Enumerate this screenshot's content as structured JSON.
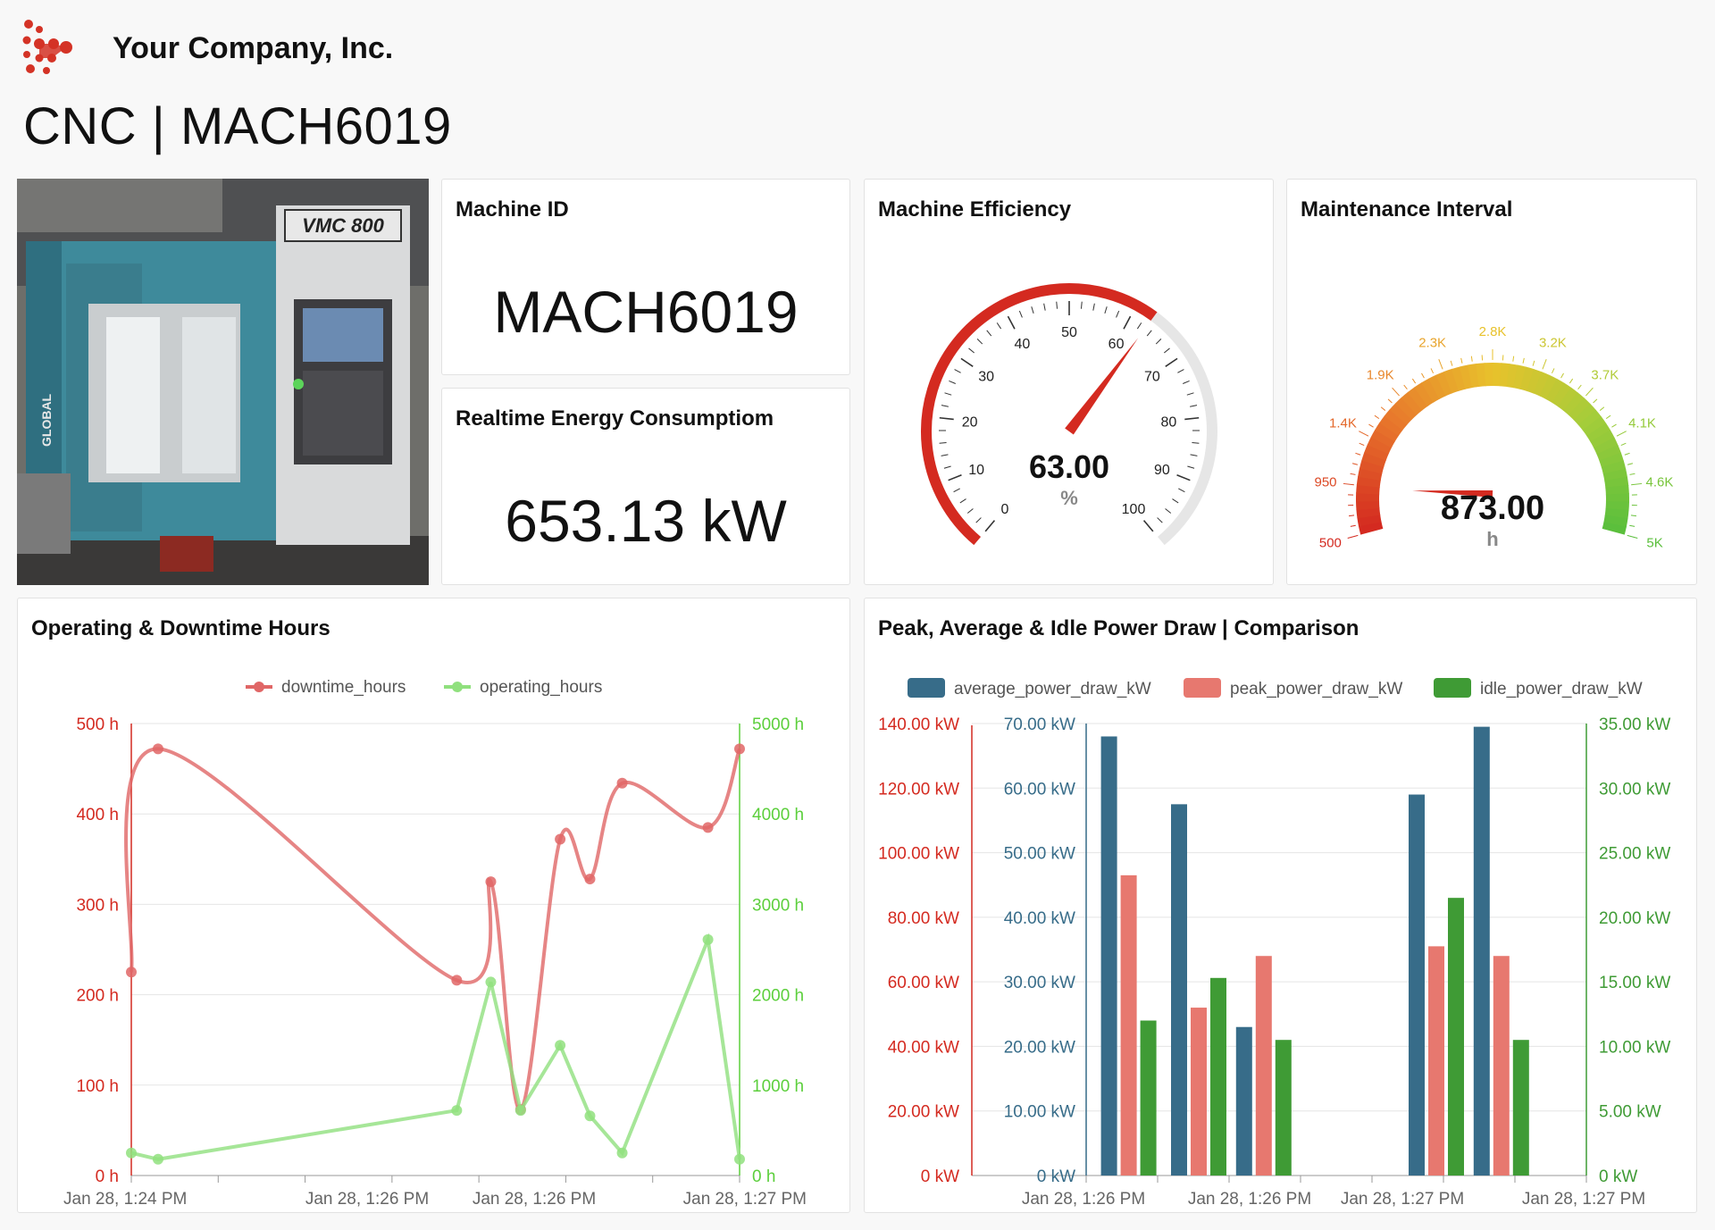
{
  "header": {
    "company": "Your Company, Inc.",
    "title": "CNC | MACH6019"
  },
  "machine_id": {
    "title": "Machine ID",
    "value": "MACH6019"
  },
  "energy": {
    "title": "Realtime Energy Consumptiom",
    "value": "653.13 kW"
  },
  "efficiency": {
    "title": "Machine Efficiency",
    "value": 63.0,
    "display": "63.00",
    "unit": "%",
    "min": 0,
    "max": 100,
    "ticks": [
      "0",
      "10",
      "20",
      "30",
      "40",
      "50",
      "60",
      "70",
      "80",
      "90",
      "100"
    ],
    "color": "#d42a20"
  },
  "maintenance": {
    "title": "Maintenance Interval",
    "value": 873,
    "display": "873.00",
    "unit": "h",
    "min": 500,
    "max": 5000,
    "ticks": [
      "500",
      "950",
      "1.4K",
      "1.9K",
      "2.3K",
      "2.8K",
      "3.2K",
      "3.7K",
      "4.1K",
      "4.6K",
      "5K"
    ]
  },
  "machine_photo": {
    "label": "VMC 800",
    "brand": "GLOBAL"
  },
  "charts": {
    "hours": {
      "title": "Operating & Downtime Hours",
      "legend": [
        "downtime_hours",
        "operating_hours"
      ],
      "left_ticks": [
        "0 h",
        "100 h",
        "200 h",
        "300 h",
        "400 h",
        "500 h"
      ],
      "right_ticks": [
        "0 h",
        "1000 h",
        "2000 h",
        "3000 h",
        "4000 h",
        "5000 h"
      ],
      "x_labels": [
        "Jan 28, 1:24 PM",
        "Jan 28, 1:26 PM",
        "Jan 28, 1:26 PM",
        "Jan 28, 1:27 PM"
      ]
    },
    "power": {
      "title": "Peak, Average & Idle Power Draw | Comparison",
      "legend": [
        "average_power_draw_kW",
        "peak_power_draw_kW",
        "idle_power_draw_kW"
      ],
      "left_ticks": [
        "0 kW",
        "20.00 kW",
        "40.00 kW",
        "60.00 kW",
        "80.00 kW",
        "100.00 kW",
        "120.00 kW",
        "140.00 kW"
      ],
      "mid_ticks": [
        "0 kW",
        "10.00 kW",
        "20.00 kW",
        "30.00 kW",
        "40.00 kW",
        "50.00 kW",
        "60.00 kW",
        "70.00 kW"
      ],
      "right_ticks": [
        "0 kW",
        "5.00 kW",
        "10.00 kW",
        "15.00 kW",
        "20.00 kW",
        "25.00 kW",
        "30.00 kW",
        "35.00 kW"
      ],
      "x_labels": [
        "Jan 28, 1:26 PM",
        "Jan 28, 1:26 PM",
        "Jan 28, 1:27 PM",
        "Jan 28, 1:27 PM"
      ]
    }
  },
  "chart_data": [
    {
      "type": "line",
      "title": "Operating & Downtime Hours",
      "x_ticks": [
        "Jan 28, 1:24 PM",
        "Jan 28, 1:26 PM",
        "Jan 28, 1:26 PM",
        "Jan 28, 1:27 PM"
      ],
      "series": [
        {
          "name": "downtime_hours",
          "axis": "left",
          "color": "#e06666",
          "x": [
            0,
            0.044,
            0.535,
            0.591,
            0.64,
            0.705,
            0.754,
            0.807,
            0.948,
            1.0
          ],
          "values": [
            225,
            472,
            216,
            325,
            73,
            372,
            328,
            434,
            385,
            472
          ]
        },
        {
          "name": "operating_hours",
          "axis": "right",
          "color": "#90e07e",
          "x": [
            0,
            0.044,
            0.535,
            0.591,
            0.64,
            0.705,
            0.754,
            0.807,
            0.948,
            1.0
          ],
          "values": [
            250,
            180,
            720,
            2140,
            720,
            1440,
            660,
            250,
            2610,
            180
          ]
        }
      ],
      "ylim_left": [
        0,
        500
      ],
      "ylim_right": [
        0,
        5000
      ]
    },
    {
      "type": "bar",
      "title": "Peak, Average & Idle Power Draw | Comparison",
      "groups_x": [
        0.085,
        0.225,
        0.355,
        0.7,
        0.83
      ],
      "series": [
        {
          "name": "average_power_draw_kW",
          "axis": "mid",
          "color": "#376c89",
          "values": [
            68,
            57.5,
            23,
            59,
            69.5
          ]
        },
        {
          "name": "peak_power_draw_kW",
          "axis": "left",
          "color": "#e7786f",
          "values": [
            93,
            52,
            68,
            71,
            68
          ]
        },
        {
          "name": "idle_power_draw_kW",
          "axis": "right",
          "color": "#3f9b35",
          "values": [
            12,
            15.3,
            10.5,
            21.5,
            10.5
          ]
        }
      ],
      "ylim_left": [
        0,
        140
      ],
      "ylim_mid": [
        0,
        70
      ],
      "ylim_right": [
        0,
        35
      ]
    }
  ]
}
